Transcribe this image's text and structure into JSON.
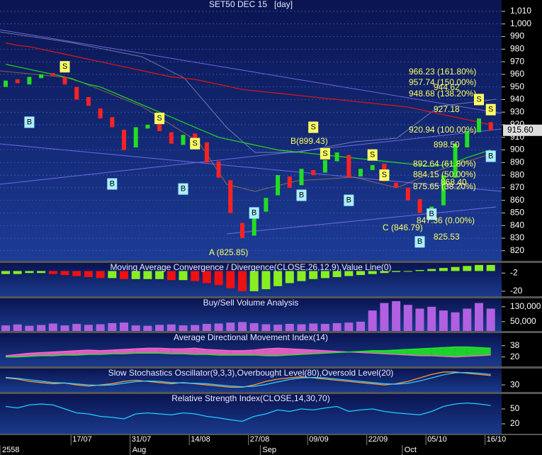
{
  "chart_data": [
    {
      "type": "candlestick",
      "title": "SET50 DEC 15   [day]",
      "categories": [
        null,
        null,
        null,
        null,
        null,
        null,
        "17/07",
        null,
        null,
        null,
        null,
        "31/07",
        null,
        null,
        null,
        null,
        "14/08",
        null,
        null,
        null,
        null,
        "27/08",
        null,
        null,
        null,
        null,
        "09/09",
        null,
        null,
        null,
        null,
        "22/09",
        null,
        null,
        null,
        null,
        "05/10",
        null,
        null,
        null,
        null,
        "16/10"
      ],
      "months": [
        "2558",
        null,
        null,
        null,
        null,
        null,
        null,
        null,
        null,
        null,
        null,
        "Aug",
        null,
        null,
        null,
        null,
        null,
        null,
        null,
        null,
        null,
        null,
        "Sep",
        null,
        null,
        null,
        null,
        null,
        null,
        null,
        null,
        null,
        null,
        null,
        "Oct",
        null,
        null,
        null,
        null,
        null,
        null,
        null
      ],
      "open": [
        950,
        956,
        952,
        957,
        961,
        958,
        950,
        942,
        933,
        926,
        916,
        902,
        917,
        921,
        914,
        904,
        913,
        906,
        891,
        876,
        842,
        832,
        851,
        864,
        879,
        872,
        884,
        882,
        891,
        896,
        879,
        884,
        889,
        874,
        870,
        861,
        849,
        856,
        878,
        902,
        914,
        922
      ],
      "close": [
        955,
        953,
        958,
        960,
        959,
        952,
        940,
        935,
        925,
        918,
        900,
        918,
        920,
        915,
        905,
        912,
        908,
        890,
        878,
        850,
        830,
        850,
        862,
        880,
        870,
        885,
        880,
        892,
        898,
        878,
        885,
        888,
        875,
        870,
        860,
        850,
        855,
        880,
        905,
        915,
        925,
        915.6
      ],
      "up_color": "#22dd22",
      "down_color": "#ff2222",
      "series": [
        {
          "color": "#d01818",
          "values": [
            985,
            983,
            982,
            980,
            978,
            976,
            974,
            972,
            970,
            968,
            966,
            964,
            962,
            960,
            958,
            957,
            956,
            954,
            952,
            950,
            948,
            947,
            946,
            945,
            944,
            943,
            942,
            941,
            940,
            939,
            938,
            937,
            936,
            935,
            934,
            932,
            930,
            928,
            926,
            924,
            922,
            920
          ]
        },
        {
          "color": "#22cc22",
          "values": [
            968,
            966,
            964,
            962,
            960,
            958,
            955,
            952,
            950,
            946,
            942,
            938,
            934,
            930,
            926,
            922,
            918,
            914,
            910,
            908,
            906,
            904,
            902,
            900,
            899,
            898,
            897,
            896,
            895,
            894,
            893,
            892,
            891,
            890,
            889,
            888,
            887,
            888,
            890,
            894,
            897,
            900
          ]
        }
      ],
      "buy_label": "B",
      "sell_label": "S",
      "buy_signals": [
        null,
        null,
        922,
        null,
        null,
        null,
        null,
        null,
        null,
        873,
        null,
        null,
        null,
        null,
        null,
        869,
        null,
        null,
        null,
        null,
        null,
        850,
        null,
        null,
        null,
        864,
        null,
        null,
        null,
        860,
        null,
        null,
        null,
        null,
        null,
        827,
        849,
        null,
        null,
        null,
        null,
        895
      ],
      "sell_signals": [
        null,
        null,
        null,
        null,
        null,
        966,
        null,
        null,
        null,
        null,
        null,
        null,
        null,
        925,
        null,
        null,
        905,
        null,
        null,
        null,
        null,
        null,
        null,
        null,
        null,
        null,
        918,
        897,
        null,
        null,
        null,
        896,
        880,
        null,
        null,
        null,
        null,
        null,
        null,
        null,
        940,
        932
      ],
      "annotations": [
        "B(899.43)",
        "A (825.85)",
        "C (846.79)",
        "825.53",
        "847.36 (0.00%)",
        "875.65 (38.20%)",
        "868.40",
        "884.15 (50.00%)",
        "892.64 (61.80%)",
        "898.50",
        "920.94 (100.00%)",
        "927.18",
        "948.68 (138.20%)",
        "944.62",
        "957.74 (150.00%)",
        "966.23 (161.80%)"
      ],
      "last_price": {
        "value": 915.6,
        "label": "915.60"
      },
      "ylim": [
        812,
        1019
      ],
      "yticks": [
        820,
        830,
        840,
        850,
        860,
        870,
        880,
        890,
        900,
        910,
        920,
        930,
        940,
        950,
        960,
        970,
        980,
        990,
        {
          "value": 1000,
          "label": "1,000"
        },
        {
          "value": 1010,
          "label": "1,010"
        }
      ],
      "grid": true
    },
    {
      "type": "bar",
      "title": "Moving Average Convergence / Divergence(CLOSE,26,12,9),Value Line(0)",
      "values": [
        -3,
        -3,
        -2,
        -2,
        -3,
        -4,
        -5,
        -6,
        -7,
        -7,
        -8,
        -8,
        -8,
        -8,
        -9,
        -9,
        -10,
        -12,
        -14,
        -17,
        -20,
        -20,
        -18,
        -15,
        -12,
        -10,
        -8,
        -7,
        -6,
        -5,
        -4,
        -3,
        -2,
        -1,
        0,
        1,
        2,
        3,
        4,
        5,
        6,
        6
      ],
      "up_color": "#88ee22",
      "down_color": "#ee1111",
      "ylim": [
        -25,
        8
      ],
      "yticks": [
        -2,
        -20
      ]
    },
    {
      "type": "bar",
      "title": "Buy/Sell Volume Analysis",
      "values": [
        30000,
        35000,
        28000,
        32000,
        40000,
        30000,
        38000,
        33000,
        36000,
        42000,
        45000,
        30000,
        28000,
        33000,
        35000,
        30000,
        32000,
        38000,
        40000,
        45000,
        48000,
        42000,
        36000,
        34000,
        38000,
        36000,
        40000,
        38000,
        42000,
        45000,
        50000,
        110000,
        150000,
        160000,
        140000,
        120000,
        130000,
        110000,
        100000,
        120000,
        150000,
        120000
      ],
      "color": "#b060e0",
      "ylim": [
        0,
        175000
      ],
      "yticks": [
        {
          "value": 50000,
          "label": "50,000"
        },
        {
          "value": 130000,
          "label": "130,000"
        }
      ]
    },
    {
      "type": "area",
      "title": "Average Directional Movement Index(14)",
      "series": [
        {
          "color": "#ff66cc",
          "values": [
            22,
            24,
            26,
            27,
            28,
            29,
            30,
            31,
            30,
            31,
            32,
            33,
            34,
            34,
            33,
            33,
            34,
            32,
            31,
            30,
            30,
            31,
            33,
            34,
            33,
            32,
            31,
            30,
            29,
            28,
            27,
            26,
            25,
            24,
            23,
            22,
            22,
            21,
            20,
            21,
            22,
            23
          ]
        },
        {
          "color": "#22ee22",
          "values": [
            20,
            20,
            21,
            22,
            22,
            23,
            23,
            24,
            24,
            25,
            25,
            26,
            26,
            26,
            25,
            25,
            24,
            24,
            23,
            23,
            23,
            23,
            22,
            22,
            23,
            24,
            25,
            26,
            27,
            28,
            29,
            30,
            30,
            31,
            32,
            33,
            34,
            35,
            36,
            36,
            35,
            34
          ]
        }
      ],
      "ylim": [
        5,
        58
      ],
      "yticks": [
        20,
        38
      ]
    },
    {
      "type": "line",
      "title": "Slow Stochastics Oscillator(9,3,3),Overbought Level(80),Oversold Level(20)",
      "series": [
        {
          "color": "#ff9933",
          "values": [
            60,
            55,
            45,
            40,
            35,
            38,
            30,
            25,
            30,
            35,
            45,
            50,
            45,
            40,
            35,
            40,
            35,
            30,
            25,
            20,
            20,
            30,
            45,
            55,
            60,
            65,
            60,
            55,
            50,
            45,
            40,
            35,
            30,
            35,
            45,
            60,
            75,
            85,
            85,
            80,
            75,
            70
          ]
        },
        {
          "color": "#33ccff",
          "values": [
            62,
            58,
            52,
            46,
            40,
            38,
            34,
            30,
            28,
            30,
            37,
            44,
            47,
            45,
            40,
            38,
            37,
            35,
            30,
            25,
            22,
            24,
            32,
            43,
            53,
            60,
            62,
            60,
            55,
            50,
            45,
            40,
            35,
            33,
            37,
            47,
            60,
            73,
            82,
            83,
            80,
            75
          ]
        }
      ],
      "ylim": [
        0,
        100
      ],
      "yticks": [
        30
      ]
    },
    {
      "type": "line",
      "title": "Relative Strength Index(CLOSE,14,30,70)",
      "series": [
        {
          "color": "#22ccff",
          "values": [
            55,
            52,
            58,
            60,
            58,
            50,
            42,
            40,
            35,
            33,
            30,
            40,
            42,
            40,
            38,
            42,
            40,
            35,
            32,
            28,
            25,
            35,
            40,
            48,
            45,
            50,
            48,
            52,
            55,
            45,
            48,
            50,
            45,
            42,
            40,
            38,
            45,
            55,
            60,
            62,
            60,
            57
          ]
        }
      ],
      "ylim": [
        0,
        80
      ],
      "yticks": [
        20,
        50
      ]
    }
  ]
}
